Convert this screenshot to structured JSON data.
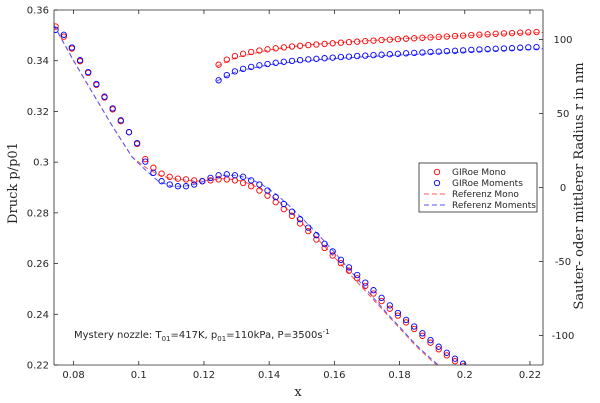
{
  "chart_data": {
    "type": "scatter",
    "xlabel": "x",
    "ylabel_left": "Druck p/p01",
    "ylabel_right": "Sauter- oder mittlerer Radius r in nm",
    "xlim": [
      0.074,
      0.224
    ],
    "ylim_left": [
      0.22,
      0.36
    ],
    "ylim_right": [
      -120,
      120
    ],
    "x_ticks": [
      "0.08",
      "0.1",
      "0.12",
      "0.14",
      "0.16",
      "0.18",
      "0.2",
      "0.22"
    ],
    "y_left_ticks": [
      "0.22",
      "0.24",
      "0.26",
      "0.28",
      "0.3",
      "0.32",
      "0.34",
      "0.36"
    ],
    "y_right_ticks": [
      "-100",
      "-50",
      "0",
      "50",
      "100"
    ],
    "grid": false,
    "legend_position": "right",
    "annotation": {
      "prefix": "Mystery nozzle: T",
      "sub1": "01",
      "mid": "=417K, p",
      "sub2": "01",
      "mid2": "=110kPa, P=3500s",
      "sup": "-1"
    },
    "legend": [
      {
        "label": "GIRoe Mono",
        "style": "circle",
        "color": "#ff0000"
      },
      {
        "label": "GIRoe Moments",
        "style": "circle",
        "color": "#0000ff"
      },
      {
        "label": "Referenz Mono",
        "style": "dashed",
        "color": "#ff0000"
      },
      {
        "label": "Referenz Moments",
        "style": "dashed",
        "color": "#0000ff"
      }
    ],
    "series": [
      {
        "name": "Referenz Mono",
        "axis": "left",
        "style": "dashed",
        "color": "#ff5555",
        "x": [
          0.074,
          0.08,
          0.086,
          0.092,
          0.098,
          0.102,
          0.106,
          0.11,
          0.114,
          0.118,
          0.122,
          0.126,
          0.13,
          0.134,
          0.138,
          0.142,
          0.146,
          0.15,
          0.155,
          0.16,
          0.165,
          0.17,
          0.175,
          0.18,
          0.185,
          0.19,
          0.195,
          0.2,
          0.204
        ],
        "y": [
          0.354,
          0.34,
          0.327,
          0.314,
          0.302,
          0.298,
          0.295,
          0.2935,
          0.293,
          0.2925,
          0.293,
          0.2935,
          0.293,
          0.2915,
          0.289,
          0.2855,
          0.281,
          0.276,
          0.2695,
          0.2625,
          0.2555,
          0.2485,
          0.2415,
          0.2345,
          0.2275,
          0.2215,
          0.2165,
          0.2125,
          0.21
        ]
      },
      {
        "name": "Referenz Moments",
        "axis": "left",
        "style": "dashed",
        "color": "#5555ff",
        "x": [
          0.074,
          0.08,
          0.086,
          0.092,
          0.098,
          0.102,
          0.106,
          0.11,
          0.114,
          0.118,
          0.122,
          0.126,
          0.13,
          0.134,
          0.138,
          0.142,
          0.146,
          0.15,
          0.155,
          0.16,
          0.165,
          0.17,
          0.175,
          0.18,
          0.185,
          0.19,
          0.195,
          0.2,
          0.204
        ],
        "y": [
          0.354,
          0.34,
          0.327,
          0.314,
          0.302,
          0.297,
          0.2925,
          0.2905,
          0.2905,
          0.2915,
          0.2935,
          0.2948,
          0.2948,
          0.2935,
          0.291,
          0.2875,
          0.283,
          0.278,
          0.2715,
          0.2645,
          0.257,
          0.2495,
          0.242,
          0.235,
          0.228,
          0.222,
          0.2168,
          0.2125,
          0.21
        ]
      },
      {
        "name": "Referenz Mono radius",
        "axis": "right",
        "style": "dashed",
        "color": "#ff5555",
        "x": [
          0.124,
          0.13,
          0.14,
          0.15,
          0.16,
          0.17,
          0.18,
          0.19,
          0.2,
          0.21,
          0.224
        ],
        "y": [
          82,
          88,
          93,
          96,
          97.8,
          99.2,
          100.5,
          101.6,
          102.6,
          103.6,
          104.8
        ]
      },
      {
        "name": "Referenz Moments radius",
        "axis": "right",
        "style": "dashed",
        "color": "#5555ff",
        "x": [
          0.124,
          0.13,
          0.14,
          0.15,
          0.16,
          0.17,
          0.18,
          0.19,
          0.2,
          0.21,
          0.224
        ],
        "y": [
          72,
          78.5,
          83,
          85.5,
          87.2,
          88.5,
          89.6,
          90.6,
          91.6,
          92.5,
          93.8
        ]
      },
      {
        "name": "GIRoe Mono",
        "axis": "left",
        "style": "circle",
        "color": "#ff0000",
        "x": [
          0.0745,
          0.077,
          0.0795,
          0.082,
          0.0845,
          0.087,
          0.0895,
          0.092,
          0.0945,
          0.097,
          0.0995,
          0.102,
          0.1045,
          0.107,
          0.1095,
          0.112,
          0.1145,
          0.117,
          0.1195,
          0.122,
          0.1245,
          0.127,
          0.1295,
          0.132,
          0.1345,
          0.137,
          0.1395,
          0.142,
          0.1445,
          0.147,
          0.1495,
          0.152,
          0.1545,
          0.157,
          0.1595,
          0.162,
          0.1645,
          0.167,
          0.1695,
          0.172,
          0.1745,
          0.177,
          0.1795,
          0.182,
          0.1845,
          0.187,
          0.1895,
          0.192,
          0.1945,
          0.197,
          0.1995,
          0.202
        ],
        "y": [
          0.3535,
          0.3495,
          0.3448,
          0.3398,
          0.3352,
          0.3305,
          0.3255,
          0.3208,
          0.3162,
          0.3118,
          0.3072,
          0.3012,
          0.2978,
          0.2955,
          0.2942,
          0.2935,
          0.2932,
          0.2928,
          0.2925,
          0.2928,
          0.2932,
          0.2932,
          0.2928,
          0.2918,
          0.2905,
          0.2888,
          0.2868,
          0.2842,
          0.2815,
          0.2788,
          0.2758,
          0.2728,
          0.2695,
          0.2662,
          0.2632,
          0.2602,
          0.2572,
          0.2542,
          0.2512,
          0.2482,
          0.2452,
          0.2422,
          0.2395,
          0.2368,
          0.2342,
          0.2315,
          0.2288,
          0.2262,
          0.2238,
          0.2215,
          0.2195,
          0.2182
        ]
      },
      {
        "name": "GIRoe Moments",
        "axis": "left",
        "style": "circle",
        "color": "#0000ff",
        "x": [
          0.0745,
          0.077,
          0.0795,
          0.082,
          0.0845,
          0.087,
          0.0895,
          0.092,
          0.0945,
          0.097,
          0.0995,
          0.102,
          0.1045,
          0.107,
          0.1095,
          0.112,
          0.1145,
          0.117,
          0.1195,
          0.122,
          0.1245,
          0.127,
          0.1295,
          0.132,
          0.1345,
          0.137,
          0.1395,
          0.142,
          0.1445,
          0.147,
          0.1495,
          0.152,
          0.1545,
          0.157,
          0.1595,
          0.162,
          0.1645,
          0.167,
          0.1695,
          0.172,
          0.1745,
          0.177,
          0.1795,
          0.182,
          0.1845,
          0.187,
          0.1895,
          0.192,
          0.1945,
          0.197,
          0.1995,
          0.202
        ],
        "y": [
          0.3522,
          0.3502,
          0.3452,
          0.3402,
          0.3355,
          0.3308,
          0.3258,
          0.3212,
          0.3165,
          0.3118,
          0.3075,
          0.3002,
          0.2958,
          0.2925,
          0.2912,
          0.2905,
          0.2905,
          0.2912,
          0.2925,
          0.2938,
          0.2948,
          0.2952,
          0.2948,
          0.2942,
          0.2928,
          0.2912,
          0.2888,
          0.2862,
          0.2835,
          0.2805,
          0.2775,
          0.2742,
          0.2712,
          0.2678,
          0.2648,
          0.2615,
          0.2585,
          0.2555,
          0.2525,
          0.2495,
          0.2465,
          0.2435,
          0.2405,
          0.2378,
          0.2352,
          0.2325,
          0.2298,
          0.2272,
          0.2248,
          0.2225,
          0.2205,
          0.2185
        ]
      },
      {
        "name": "GIRoe Mono radius",
        "axis": "right",
        "style": "circle",
        "color": "#ff0000",
        "x": [
          0.1245,
          0.127,
          0.1295,
          0.132,
          0.1345,
          0.137,
          0.1395,
          0.142,
          0.1445,
          0.147,
          0.1495,
          0.152,
          0.1545,
          0.157,
          0.1595,
          0.162,
          0.1645,
          0.167,
          0.1695,
          0.172,
          0.1745,
          0.177,
          0.1795,
          0.182,
          0.1845,
          0.187,
          0.1895,
          0.192,
          0.1945,
          0.197,
          0.1995,
          0.202,
          0.2045,
          0.207,
          0.2095,
          0.212,
          0.2145,
          0.217,
          0.2195,
          0.222
        ],
        "y": [
          83,
          86.5,
          88.8,
          90.4,
          91.6,
          92.6,
          93.4,
          94.1,
          94.7,
          95.3,
          95.8,
          96.3,
          96.7,
          97.1,
          97.5,
          97.9,
          98.3,
          98.6,
          99,
          99.3,
          99.7,
          100,
          100.3,
          100.6,
          100.9,
          101.2,
          101.5,
          101.8,
          102.1,
          102.4,
          102.7,
          103,
          103.3,
          103.6,
          103.9,
          104.2,
          104.4,
          104.7,
          104.9,
          105.1
        ]
      },
      {
        "name": "GIRoe Moments radius",
        "axis": "right",
        "style": "circle",
        "color": "#0000ff",
        "x": [
          0.1245,
          0.127,
          0.1295,
          0.132,
          0.1345,
          0.137,
          0.1395,
          0.142,
          0.1445,
          0.147,
          0.1495,
          0.152,
          0.1545,
          0.157,
          0.1595,
          0.162,
          0.1645,
          0.167,
          0.1695,
          0.172,
          0.1745,
          0.177,
          0.1795,
          0.182,
          0.1845,
          0.187,
          0.1895,
          0.192,
          0.1945,
          0.197,
          0.1995,
          0.202,
          0.2045,
          0.207,
          0.2095,
          0.212,
          0.2145,
          0.217,
          0.2195,
          0.222
        ],
        "y": [
          72.5,
          76,
          78.5,
          80.2,
          81.5,
          82.6,
          83.5,
          84.3,
          85,
          85.6,
          86.1,
          86.6,
          87,
          87.4,
          87.8,
          88.2,
          88.5,
          88.9,
          89.2,
          89.5,
          89.8,
          90.1,
          90.4,
          90.7,
          91,
          91.3,
          91.6,
          91.9,
          92.2,
          92.4,
          92.7,
          93,
          93.3,
          93.5,
          93.8,
          94,
          94.2,
          94.5,
          94.7,
          94.9
        ]
      }
    ]
  }
}
